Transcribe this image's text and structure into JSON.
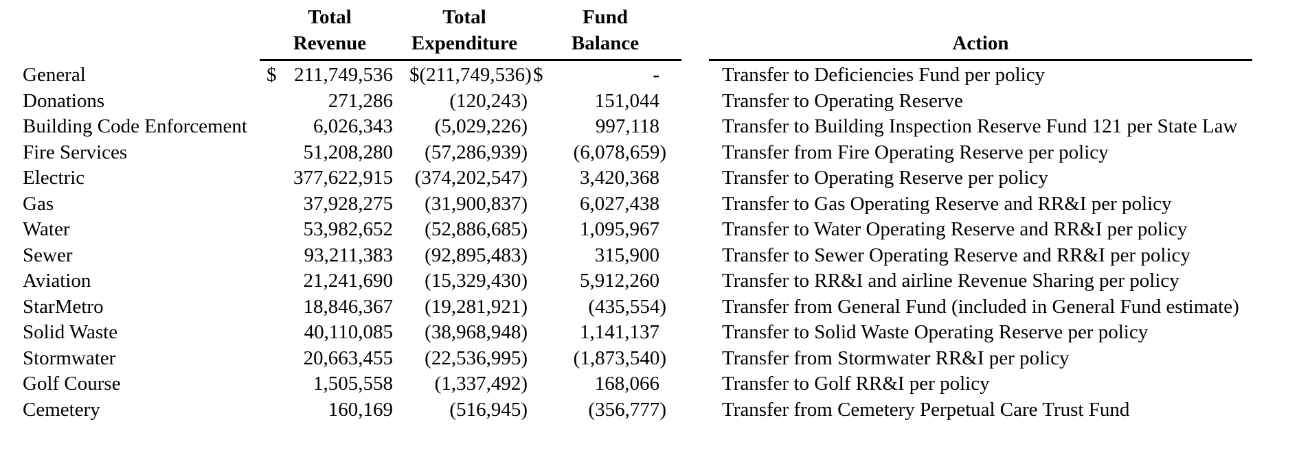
{
  "page": {
    "background": "#ffffff",
    "text_color": "#000000",
    "rule_color": "#000000"
  },
  "table": {
    "headers": {
      "revenue_line1": "Total",
      "revenue_line2": "Revenue",
      "expenditure_line1": "Total",
      "expenditure_line2": "Expenditure",
      "balance_line1": "Fund",
      "balance_line2": "Balance",
      "action": "Action"
    },
    "rows": [
      {
        "fund": "General",
        "revenue_dollar": "$",
        "revenue": "211,749,536",
        "expenditure_dollar": "$",
        "expenditure": "(211,749,536)",
        "balance_dollar": "$",
        "balance": "-",
        "action": "Transfer to Deficiencies Fund per policy"
      },
      {
        "fund": "Donations",
        "revenue_dollar": "",
        "revenue": "271,286",
        "expenditure_dollar": "",
        "expenditure": "(120,243)",
        "balance_dollar": "",
        "balance": "151,044",
        "action": "Transfer to Operating Reserve"
      },
      {
        "fund": "Building Code Enforcement",
        "revenue_dollar": "",
        "revenue": "6,026,343",
        "expenditure_dollar": "",
        "expenditure": "(5,029,226)",
        "balance_dollar": "",
        "balance": "997,118",
        "action": "Transfer to Building Inspection Reserve Fund 121 per State Law"
      },
      {
        "fund": "Fire Services",
        "revenue_dollar": "",
        "revenue": "51,208,280",
        "expenditure_dollar": "",
        "expenditure": "(57,286,939)",
        "balance_dollar": "",
        "balance": "(6,078,659)",
        "action": "Transfer from Fire Operating Reserve per policy"
      },
      {
        "fund": "Electric",
        "revenue_dollar": "",
        "revenue": "377,622,915",
        "expenditure_dollar": "",
        "expenditure": "(374,202,547)",
        "balance_dollar": "",
        "balance": "3,420,368",
        "action": "Transfer to Operating Reserve per policy"
      },
      {
        "fund": "Gas",
        "revenue_dollar": "",
        "revenue": "37,928,275",
        "expenditure_dollar": "",
        "expenditure": "(31,900,837)",
        "balance_dollar": "",
        "balance": "6,027,438",
        "action": "Transfer to Gas Operating Reserve and RR&I per policy"
      },
      {
        "fund": "Water",
        "revenue_dollar": "",
        "revenue": "53,982,652",
        "expenditure_dollar": "",
        "expenditure": "(52,886,685)",
        "balance_dollar": "",
        "balance": "1,095,967",
        "action": "Transfer to Water Operating Reserve and RR&I per policy"
      },
      {
        "fund": "Sewer",
        "revenue_dollar": "",
        "revenue": "93,211,383",
        "expenditure_dollar": "",
        "expenditure": "(92,895,483)",
        "balance_dollar": "",
        "balance": "315,900",
        "action": "Transfer to Sewer Operating Reserve and RR&I per policy"
      },
      {
        "fund": "Aviation",
        "revenue_dollar": "",
        "revenue": "21,241,690",
        "expenditure_dollar": "",
        "expenditure": "(15,329,430)",
        "balance_dollar": "",
        "balance": "5,912,260",
        "action": "Transfer to RR&I and airline Revenue Sharing per policy"
      },
      {
        "fund": "StarMetro",
        "revenue_dollar": "",
        "revenue": "18,846,367",
        "expenditure_dollar": "",
        "expenditure": "(19,281,921)",
        "balance_dollar": "",
        "balance": "(435,554)",
        "action": "Transfer from General Fund (included in General Fund estimate)"
      },
      {
        "fund": "Solid Waste",
        "revenue_dollar": "",
        "revenue": "40,110,085",
        "expenditure_dollar": "",
        "expenditure": "(38,968,948)",
        "balance_dollar": "",
        "balance": "1,141,137",
        "action": "Transfer to Solid Waste Operating Reserve per policy"
      },
      {
        "fund": "Stormwater",
        "revenue_dollar": "",
        "revenue": "20,663,455",
        "expenditure_dollar": "",
        "expenditure": "(22,536,995)",
        "balance_dollar": "",
        "balance": "(1,873,540)",
        "action": "Transfer from Stormwater RR&I per policy"
      },
      {
        "fund": "Golf Course",
        "revenue_dollar": "",
        "revenue": "1,505,558",
        "expenditure_dollar": "",
        "expenditure": "(1,337,492)",
        "balance_dollar": "",
        "balance": "168,066",
        "action": "Transfer to Golf RR&I per policy"
      },
      {
        "fund": "Cemetery",
        "revenue_dollar": "",
        "revenue": "160,169",
        "expenditure_dollar": "",
        "expenditure": "(516,945)",
        "balance_dollar": "",
        "balance": "(356,777)",
        "action": "Transfer from Cemetery Perpetual Care Trust Fund"
      }
    ]
  }
}
